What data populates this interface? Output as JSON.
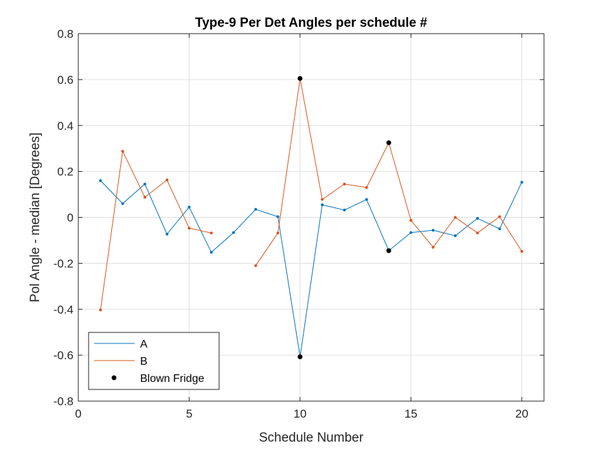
{
  "chart_data": {
    "type": "line",
    "title": "Type-9 Per Det Angles per schedule #",
    "xlabel": "Schedule Number",
    "ylabel": "Pol Angle - median [Degrees]",
    "xlim": [
      0,
      21
    ],
    "ylim": [
      -0.8,
      0.8
    ],
    "xticks": [
      0,
      5,
      10,
      15,
      20
    ],
    "xtick_labels": [
      "0",
      "5",
      "10",
      "15",
      "20"
    ],
    "yticks": [
      -0.8,
      -0.6,
      -0.4,
      -0.2,
      0,
      0.2,
      0.4,
      0.6,
      0.8
    ],
    "ytick_labels": [
      "-0.8",
      "-0.6",
      "-0.4",
      "-0.2",
      "0",
      "0.2",
      "0.4",
      "0.6",
      "0.8"
    ],
    "grid": true,
    "legend_position": "bottom-left",
    "series": [
      {
        "name": "A",
        "color": "#0072BD",
        "x": [
          1,
          2,
          3,
          4,
          5,
          6,
          7,
          8,
          9,
          10,
          11,
          12,
          13,
          14,
          15,
          16,
          17,
          18,
          19,
          20
        ],
        "y": [
          0.16,
          0.06,
          0.145,
          -0.073,
          0.045,
          -0.152,
          -0.066,
          0.035,
          0.003,
          -0.607,
          0.055,
          0.032,
          0.078,
          -0.145,
          -0.066,
          -0.056,
          -0.08,
          -0.004,
          -0.05,
          0.153
        ]
      },
      {
        "name": "B",
        "color": "#D95319",
        "x": [
          1,
          2,
          3,
          4,
          5,
          6,
          7,
          8,
          9,
          10,
          11,
          12,
          13,
          14,
          15,
          16,
          17,
          18,
          19,
          20
        ],
        "y": [
          -0.403,
          0.288,
          0.088,
          0.163,
          -0.047,
          -0.068,
          null,
          -0.21,
          -0.068,
          0.605,
          0.078,
          0.145,
          0.13,
          0.325,
          -0.013,
          -0.13,
          0.0,
          -0.068,
          0.003,
          -0.148
        ]
      }
    ],
    "markers": {
      "name": "Blown Fridge",
      "color": "#000000",
      "x": [
        10,
        10,
        14,
        14
      ],
      "y": [
        0.605,
        -0.607,
        0.325,
        -0.145
      ]
    }
  }
}
